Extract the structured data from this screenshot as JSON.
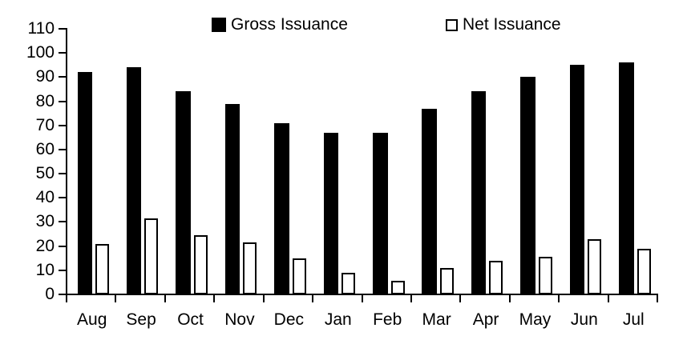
{
  "chart_data": {
    "type": "bar",
    "title": "",
    "xlabel": "",
    "ylabel": "",
    "categories": [
      "Aug",
      "Sep",
      "Oct",
      "Nov",
      "Dec",
      "Jan",
      "Feb",
      "Mar",
      "Apr",
      "May",
      "Jun",
      "Jul"
    ],
    "series": [
      {
        "name": "Gross Issuance",
        "fill": "#000000",
        "values": [
          92,
          94,
          84,
          79,
          71,
          67,
          67,
          77,
          84,
          90,
          95,
          96
        ]
      },
      {
        "name": "Net Issuance",
        "fill": "#ffffff",
        "stroke": "#000000",
        "values": [
          21,
          31.5,
          24.5,
          21.5,
          15,
          9,
          5.5,
          11,
          14,
          15.5,
          23,
          19
        ]
      }
    ],
    "ylim": [
      0,
      110
    ],
    "y_ticks": [
      0,
      10,
      20,
      30,
      40,
      50,
      60,
      70,
      80,
      90,
      100,
      110
    ],
    "grid": false,
    "legend_position": "top",
    "colors": {
      "axis": "#000000",
      "text": "#000000",
      "background": "#ffffff"
    }
  }
}
